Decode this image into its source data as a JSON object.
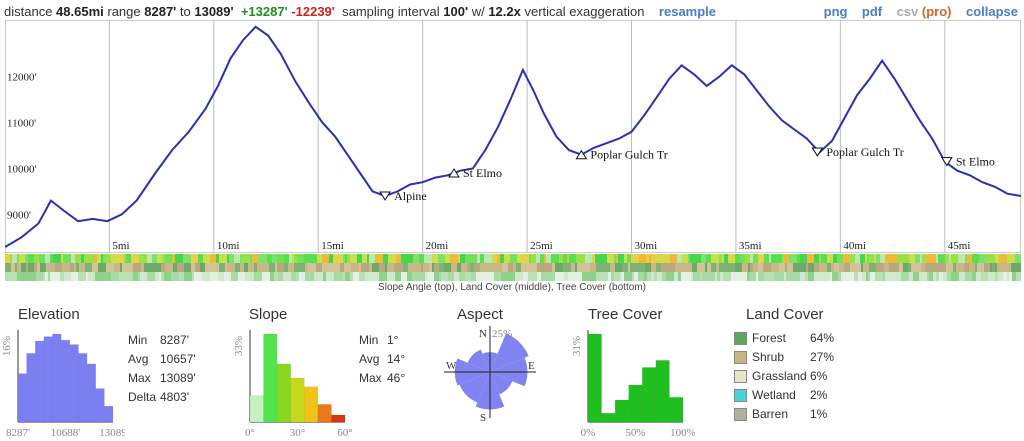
{
  "header": {
    "distance_label": "distance",
    "distance": "48.65mi",
    "range_label": "range",
    "range_min": "8287'",
    "range_to": "to",
    "range_max": "13089'",
    "gain": "+13287'",
    "loss": "-12239'",
    "sampling_label": "sampling interval",
    "sampling": "100'",
    "w": "w/",
    "exaggeration": "12.2x",
    "exaggeration_label": "vertical exaggeration",
    "resample": "resample",
    "png": "png",
    "pdf": "pdf",
    "csv": "csv",
    "pro": "(pro)",
    "collapse": "collapse"
  },
  "profile": {
    "elev_min": 8287,
    "elev_max": 13089,
    "y_ticks": [
      {
        "value": 9000,
        "label": "9000'"
      },
      {
        "value": 10000,
        "label": "10000'"
      },
      {
        "value": 11000,
        "label": "11000'"
      },
      {
        "value": 12000,
        "label": "12000'"
      }
    ],
    "x_ticks": [
      {
        "value": 5,
        "label": "5mi"
      },
      {
        "value": 10,
        "label": "10mi"
      },
      {
        "value": 15,
        "label": "15mi"
      },
      {
        "value": 20,
        "label": "20mi"
      },
      {
        "value": 25,
        "label": "25mi"
      },
      {
        "value": 30,
        "label": "30mi"
      },
      {
        "value": 35,
        "label": "35mi"
      },
      {
        "value": 40,
        "label": "40mi"
      },
      {
        "value": 45,
        "label": "45mi"
      }
    ],
    "line_color": "#2a31b0",
    "points": [
      [
        0,
        8287
      ],
      [
        0.8,
        8500
      ],
      [
        1.6,
        8800
      ],
      [
        2.2,
        9300
      ],
      [
        2.9,
        9050
      ],
      [
        3.5,
        8850
      ],
      [
        4.2,
        8900
      ],
      [
        4.9,
        8850
      ],
      [
        5.6,
        9000
      ],
      [
        6.3,
        9300
      ],
      [
        7.2,
        9900
      ],
      [
        8.0,
        10400
      ],
      [
        8.8,
        10800
      ],
      [
        9.6,
        11300
      ],
      [
        10.2,
        11800
      ],
      [
        10.8,
        12400
      ],
      [
        11.4,
        12800
      ],
      [
        12.0,
        13089
      ],
      [
        12.6,
        12900
      ],
      [
        13.2,
        12500
      ],
      [
        13.9,
        11900
      ],
      [
        14.6,
        11400
      ],
      [
        15.2,
        11000
      ],
      [
        15.8,
        10700
      ],
      [
        16.4,
        10300
      ],
      [
        17.0,
        9900
      ],
      [
        17.6,
        9500
      ],
      [
        18.2,
        9400
      ],
      [
        18.8,
        9500
      ],
      [
        19.4,
        9650
      ],
      [
        20.0,
        9700
      ],
      [
        20.6,
        9800
      ],
      [
        21.2,
        9850
      ],
      [
        21.8,
        9950
      ],
      [
        22.4,
        10000
      ],
      [
        23.0,
        10400
      ],
      [
        23.6,
        10900
      ],
      [
        24.2,
        11500
      ],
      [
        24.8,
        12150
      ],
      [
        25.3,
        11700
      ],
      [
        25.8,
        11200
      ],
      [
        26.4,
        10700
      ],
      [
        27.0,
        10400
      ],
      [
        27.6,
        10300
      ],
      [
        28.2,
        10450
      ],
      [
        28.8,
        10550
      ],
      [
        29.4,
        10650
      ],
      [
        30.0,
        10800
      ],
      [
        30.6,
        11150
      ],
      [
        31.2,
        11550
      ],
      [
        31.8,
        11950
      ],
      [
        32.4,
        12250
      ],
      [
        33.0,
        12050
      ],
      [
        33.6,
        11800
      ],
      [
        34.2,
        12000
      ],
      [
        34.8,
        12250
      ],
      [
        35.4,
        12050
      ],
      [
        36.0,
        11700
      ],
      [
        36.6,
        11350
      ],
      [
        37.2,
        11050
      ],
      [
        37.8,
        10850
      ],
      [
        38.4,
        10650
      ],
      [
        39.0,
        10350
      ],
      [
        39.6,
        10600
      ],
      [
        40.2,
        11100
      ],
      [
        40.8,
        11600
      ],
      [
        41.4,
        11950
      ],
      [
        42.0,
        12350
      ],
      [
        42.6,
        11950
      ],
      [
        43.2,
        11500
      ],
      [
        43.8,
        11050
      ],
      [
        44.4,
        10650
      ],
      [
        45.0,
        10150
      ],
      [
        45.6,
        9950
      ],
      [
        46.2,
        9850
      ],
      [
        46.8,
        9700
      ],
      [
        47.4,
        9600
      ],
      [
        48.0,
        9450
      ],
      [
        48.65,
        9400
      ]
    ],
    "markers": [
      {
        "x": 18.2,
        "y": 9400,
        "dir": "down",
        "label": "Alpine"
      },
      {
        "x": 21.5,
        "y": 9900,
        "dir": "up",
        "label": "St Elmo"
      },
      {
        "x": 27.6,
        "y": 10300,
        "dir": "up",
        "label": "Poplar Gulch Tr"
      },
      {
        "x": 38.9,
        "y": 10360,
        "dir": "down",
        "label": "Poplar Gulch Tr"
      },
      {
        "x": 45.1,
        "y": 10150,
        "dir": "down",
        "label": "St Elmo"
      }
    ]
  },
  "bands_caption": "Slope Angle (top), Land Cover (middle), Tree Cover (bottom)",
  "elevation": {
    "title": "Elevation",
    "y_label": "16%",
    "x_labels": [
      "8287'",
      "10688'",
      "13089"
    ],
    "bars": [
      0.55,
      0.78,
      0.92,
      0.97,
      1.0,
      0.93,
      0.88,
      0.78,
      0.66,
      0.38,
      0.18
    ],
    "color": "#7b7ff2",
    "stats": [
      {
        "label": "Min",
        "value": "8287'"
      },
      {
        "label": "Avg",
        "value": "10657'"
      },
      {
        "label": "Max",
        "value": "13089'"
      },
      {
        "label": "Delta",
        "value": "4803'"
      }
    ]
  },
  "slope": {
    "title": "Slope",
    "y_label": "33%",
    "x_labels": [
      "0°",
      "30°",
      "60°"
    ],
    "bars": [
      0.3,
      1.0,
      0.66,
      0.5,
      0.4,
      0.2,
      0.08
    ],
    "colors": [
      "#c5f0c0",
      "#51e44d",
      "#87d81f",
      "#c6d81e",
      "#f0c416",
      "#ea7a18",
      "#d93519"
    ],
    "stats": [
      {
        "label": "Min",
        "value": "1°"
      },
      {
        "label": "Avg",
        "value": "14°"
      },
      {
        "label": "Max",
        "value": "46°"
      }
    ]
  },
  "aspect": {
    "title": "Aspect",
    "pct_label": "25%",
    "n": "N",
    "s": "S",
    "e": "E",
    "w": "W",
    "color": "#8083f0",
    "radii": [
      0.45,
      0.95,
      0.85,
      0.55,
      0.85,
      0.75,
      0.8,
      0.55
    ]
  },
  "tree_cover": {
    "title": "Tree Cover",
    "y_label": "31%",
    "x_labels": [
      "0%",
      "50%",
      "100%"
    ],
    "bars": [
      1.0,
      0.1,
      0.25,
      0.42,
      0.62,
      0.7,
      0.28
    ],
    "color": "#1fbf1f"
  },
  "land_cover": {
    "title": "Land Cover",
    "items": [
      {
        "name": "Forest",
        "pct": "64%",
        "color": "#5ea55a"
      },
      {
        "name": "Shrub",
        "pct": "27%",
        "color": "#c8b583"
      },
      {
        "name": "Grassland",
        "pct": "6%",
        "color": "#e5e6c6"
      },
      {
        "name": "Wetland",
        "pct": "2%",
        "color": "#4fd0d5"
      },
      {
        "name": "Barren",
        "pct": "1%",
        "color": "#b3b0a3"
      }
    ]
  }
}
